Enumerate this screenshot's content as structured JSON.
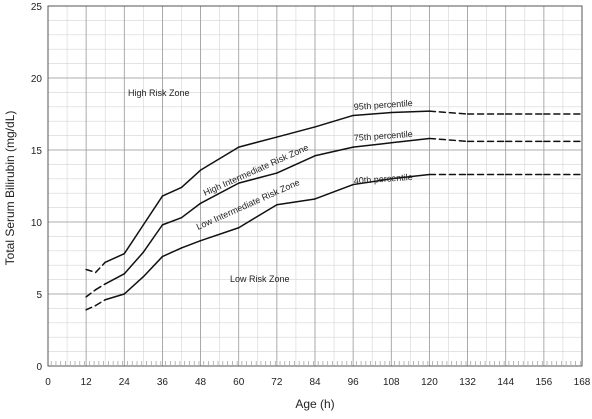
{
  "chart_data": {
    "type": "line",
    "title": "",
    "xlabel": "Age (h)",
    "ylabel": "Total Serum Bilirubin (mg/dL)",
    "xlim": [
      0,
      168
    ],
    "ylim": [
      0,
      25
    ],
    "x_ticks": [
      0,
      12,
      24,
      36,
      48,
      60,
      72,
      84,
      96,
      108,
      120,
      132,
      144,
      156,
      168
    ],
    "y_ticks": [
      0,
      5,
      10,
      15,
      20,
      25
    ],
    "grid": true,
    "series": [
      {
        "name": "95th percentile",
        "points": [
          [
            12,
            6.7
          ],
          [
            15,
            6.5
          ],
          [
            18,
            7.2
          ],
          [
            24,
            7.8
          ],
          [
            30,
            9.8
          ],
          [
            36,
            11.8
          ],
          [
            42,
            12.4
          ],
          [
            48,
            13.6
          ],
          [
            60,
            15.2
          ],
          [
            72,
            15.9
          ],
          [
            84,
            16.6
          ],
          [
            96,
            17.4
          ],
          [
            108,
            17.6
          ],
          [
            120,
            17.7
          ],
          [
            132,
            17.5
          ],
          [
            144,
            17.5
          ],
          [
            156,
            17.5
          ],
          [
            168,
            17.5
          ]
        ]
      },
      {
        "name": "75th percentile",
        "points": [
          [
            12,
            4.8
          ],
          [
            15,
            5.3
          ],
          [
            18,
            5.7
          ],
          [
            24,
            6.4
          ],
          [
            30,
            7.9
          ],
          [
            36,
            9.8
          ],
          [
            42,
            10.3
          ],
          [
            48,
            11.3
          ],
          [
            60,
            12.7
          ],
          [
            72,
            13.4
          ],
          [
            84,
            14.6
          ],
          [
            96,
            15.2
          ],
          [
            108,
            15.5
          ],
          [
            120,
            15.8
          ],
          [
            132,
            15.6
          ],
          [
            144,
            15.6
          ],
          [
            156,
            15.6
          ],
          [
            168,
            15.6
          ]
        ]
      },
      {
        "name": "40th percentile",
        "points": [
          [
            12,
            3.9
          ],
          [
            15,
            4.2
          ],
          [
            18,
            4.6
          ],
          [
            24,
            5.0
          ],
          [
            30,
            6.2
          ],
          [
            36,
            7.6
          ],
          [
            42,
            8.2
          ],
          [
            48,
            8.7
          ],
          [
            60,
            9.6
          ],
          [
            72,
            11.2
          ],
          [
            84,
            11.6
          ],
          [
            96,
            12.6
          ],
          [
            108,
            13.0
          ],
          [
            120,
            13.3
          ],
          [
            132,
            13.3
          ],
          [
            144,
            13.3
          ],
          [
            156,
            13.3
          ],
          [
            168,
            13.3
          ]
        ]
      }
    ],
    "dashed_ranges": [
      [
        12,
        18
      ],
      [
        120,
        168
      ]
    ],
    "zone_labels": {
      "high": "High Risk Zone",
      "high_intermediate": "High Intermediate Risk Zone",
      "low_intermediate": "Low Intermediate Risk Zone",
      "low": "Low Risk Zone"
    }
  }
}
